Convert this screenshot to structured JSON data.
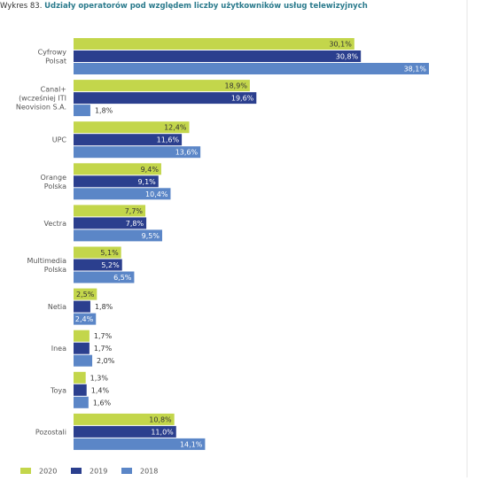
{
  "chart_data": {
    "type": "hbar",
    "figure_label": "Wykres 83.",
    "title": "Udziały operatorów pod względem liczby użytkowników usług telewizyjnych",
    "categories": [
      [
        "Cyfrowy",
        "Polsat"
      ],
      [
        "Canal+",
        "(wcześniej ITI",
        "Neovision S.A."
      ],
      [
        "UPC"
      ],
      [
        "Orange",
        "Polska"
      ],
      [
        "Vectra"
      ],
      [
        "Multimedia",
        "Polska"
      ],
      [
        "Netia"
      ],
      [
        "Inea"
      ],
      [
        "Toya"
      ],
      [
        "Pozostali"
      ]
    ],
    "xlim": [
      0,
      40
    ],
    "series": [
      {
        "name": "2020",
        "color": "#c3d64b",
        "text_color": "#333333",
        "values": [
          30.1,
          18.9,
          12.4,
          9.4,
          7.7,
          5.1,
          2.5,
          1.7,
          1.3,
          10.8
        ],
        "value_labels": [
          "30,1%",
          "18,9%",
          "12,4%",
          "9,4%",
          "7,7%",
          "5,1%",
          "2,5%",
          "1,7%",
          "1,3%",
          "10,8%"
        ]
      },
      {
        "name": "2019",
        "color": "#2b3f8e",
        "text_color": "#ffffff",
        "values": [
          30.8,
          19.6,
          11.6,
          9.1,
          7.8,
          5.2,
          1.8,
          1.7,
          1.4,
          11.0
        ],
        "value_labels": [
          "30,8%",
          "19,6%",
          "11,6%",
          "9,1%",
          "7,8%",
          "5,2%",
          "1,8%",
          "1,7%",
          "1,4%",
          "11,0%"
        ]
      },
      {
        "name": "2018",
        "color": "#5b86c7",
        "text_color": "#ffffff",
        "values": [
          38.1,
          1.8,
          13.6,
          10.4,
          9.5,
          6.5,
          2.4,
          2.0,
          1.6,
          14.1
        ],
        "value_labels": [
          "38,1%",
          "1,8%",
          "13,6%",
          "10,4%",
          "9,5%",
          "6,5%",
          "2,4%",
          "2,0%",
          "1,6%",
          "14,1%"
        ]
      }
    ]
  }
}
